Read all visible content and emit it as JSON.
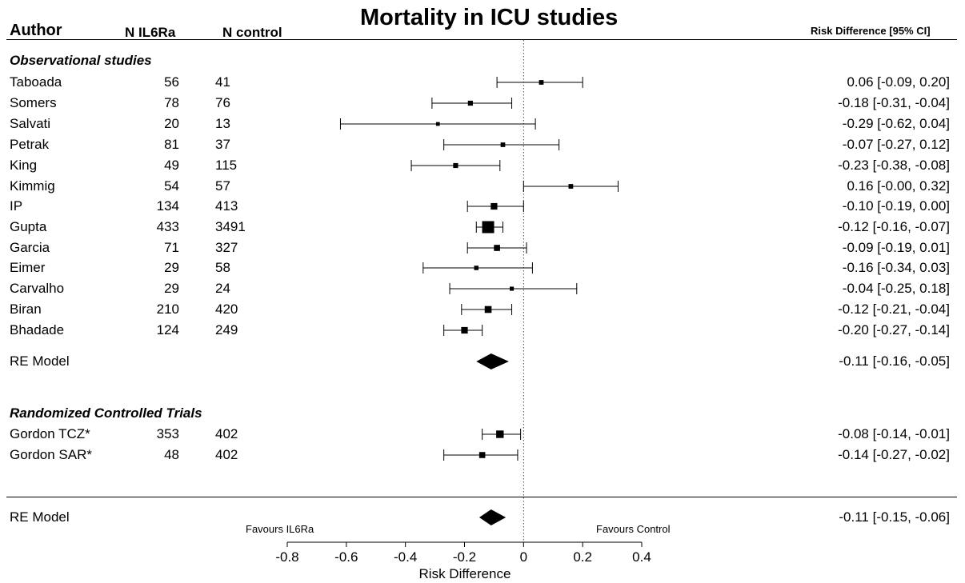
{
  "title": "Mortality in ICU studies",
  "headers": {
    "author": "Author",
    "n_il6ra": "N IL6Ra",
    "n_control": "N control",
    "effect": "Risk Difference [95% CI]"
  },
  "sections": {
    "observational": "Observational studies",
    "rct": "Randomized Controlled Trials"
  },
  "favours_left": "Favours IL6Ra",
  "favours_right": "Favours Control",
  "chart_data": {
    "type": "forest",
    "title": "Mortality in ICU studies",
    "xlabel": "Risk Difference",
    "xlim": [
      -0.8,
      0.4
    ],
    "xticks": [
      -0.8,
      -0.6,
      -0.4,
      -0.2,
      0,
      0.2,
      0.4
    ],
    "xtick_labels": [
      "-0.8",
      "-0.6",
      "-0.4",
      "-0.2",
      "0",
      "0.2",
      "0.4"
    ],
    "reference_line": 0,
    "studies": [
      {
        "group": "observational",
        "author": "Taboada",
        "n_il6ra": "56",
        "n_control": "41",
        "rd": 0.06,
        "lo": -0.09,
        "hi": 0.2,
        "label": "0.06 [-0.09,  0.20]"
      },
      {
        "group": "observational",
        "author": "Somers",
        "n_il6ra": "78",
        "n_control": "76",
        "rd": -0.18,
        "lo": -0.31,
        "hi": -0.04,
        "label": "-0.18 [-0.31, -0.04]"
      },
      {
        "group": "observational",
        "author": "Salvati",
        "n_il6ra": "20",
        "n_control": "13",
        "rd": -0.29,
        "lo": -0.62,
        "hi": 0.04,
        "label": "-0.29 [-0.62,  0.04]"
      },
      {
        "group": "observational",
        "author": "Petrak",
        "n_il6ra": "81",
        "n_control": "37",
        "rd": -0.07,
        "lo": -0.27,
        "hi": 0.12,
        "label": "-0.07 [-0.27,  0.12]"
      },
      {
        "group": "observational",
        "author": "King",
        "n_il6ra": "49",
        "n_control": "115",
        "rd": -0.23,
        "lo": -0.38,
        "hi": -0.08,
        "label": "-0.23 [-0.38, -0.08]"
      },
      {
        "group": "observational",
        "author": "Kimmig",
        "n_il6ra": "54",
        "n_control": "57",
        "rd": 0.16,
        "lo": -0.0,
        "hi": 0.32,
        "label": "0.16 [-0.00,  0.32]"
      },
      {
        "group": "observational",
        "author": "IP",
        "n_il6ra": "134",
        "n_control": "413",
        "rd": -0.1,
        "lo": -0.19,
        "hi": 0.0,
        "label": "-0.10 [-0.19,  0.00]"
      },
      {
        "group": "observational",
        "author": "Gupta",
        "n_il6ra": "433",
        "n_control": "3491",
        "rd": -0.12,
        "lo": -0.16,
        "hi": -0.07,
        "label": "-0.12 [-0.16, -0.07]"
      },
      {
        "group": "observational",
        "author": "Garcia",
        "n_il6ra": "71",
        "n_control": "327",
        "rd": -0.09,
        "lo": -0.19,
        "hi": 0.01,
        "label": "-0.09 [-0.19,  0.01]"
      },
      {
        "group": "observational",
        "author": "Eimer",
        "n_il6ra": "29",
        "n_control": "58",
        "rd": -0.16,
        "lo": -0.34,
        "hi": 0.03,
        "label": "-0.16 [-0.34,  0.03]"
      },
      {
        "group": "observational",
        "author": "Carvalho",
        "n_il6ra": "29",
        "n_control": "24",
        "rd": -0.04,
        "lo": -0.25,
        "hi": 0.18,
        "label": "-0.04 [-0.25,  0.18]"
      },
      {
        "group": "observational",
        "author": "Biran",
        "n_il6ra": "210",
        "n_control": "420",
        "rd": -0.12,
        "lo": -0.21,
        "hi": -0.04,
        "label": "-0.12 [-0.21, -0.04]"
      },
      {
        "group": "observational",
        "author": "Bhadade",
        "n_il6ra": "124",
        "n_control": "249",
        "rd": -0.2,
        "lo": -0.27,
        "hi": -0.14,
        "label": "-0.20 [-0.27, -0.14]"
      },
      {
        "group": "rct",
        "author": "Gordon TCZ*",
        "n_il6ra": "353",
        "n_control": "402",
        "rd": -0.08,
        "lo": -0.14,
        "hi": -0.01,
        "label": "-0.08 [-0.14, -0.01]"
      },
      {
        "group": "rct",
        "author": "Gordon SAR*",
        "n_il6ra": "48",
        "n_control": "402",
        "rd": -0.14,
        "lo": -0.27,
        "hi": -0.02,
        "label": "-0.14 [-0.27, -0.02]"
      }
    ],
    "pooled": [
      {
        "scope": "observational",
        "label_name": "RE Model",
        "rd": -0.11,
        "lo": -0.16,
        "hi": -0.05,
        "label": "-0.11 [-0.16, -0.05]"
      },
      {
        "scope": "overall",
        "label_name": "RE Model",
        "rd": -0.11,
        "lo": -0.15,
        "hi": -0.06,
        "label": "-0.11 [-0.15, -0.06]"
      }
    ]
  }
}
